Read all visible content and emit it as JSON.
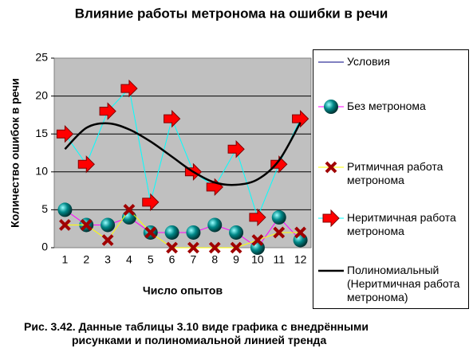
{
  "chart_data": {
    "type": "line",
    "title": "Влияние работы метронома на ошибки в речи",
    "ylabel": "Количество ошибок в речи",
    "xlabel": "Число опытов",
    "categories": [
      "1",
      "2",
      "3",
      "4",
      "5",
      "6",
      "7",
      "8",
      "9",
      "10",
      "11",
      "12"
    ],
    "ylim": [
      0,
      25
    ],
    "yticks": [
      0,
      5,
      10,
      15,
      20,
      25
    ],
    "grid": true,
    "series": [
      {
        "name": "Условия",
        "color": "#000080",
        "values": [
          null,
          null,
          null,
          null,
          null,
          null,
          null,
          null,
          null,
          null,
          null,
          null
        ]
      },
      {
        "name": "Без метронома",
        "color": "#ff00ff",
        "marker": "sphere",
        "values": [
          5,
          3,
          3,
          4,
          2,
          2,
          2,
          3,
          2,
          0,
          4,
          1
        ]
      },
      {
        "name": "Ритмичная работа метронома",
        "color": "#ffff00",
        "marker": "x",
        "values": [
          3,
          3,
          1,
          5,
          2,
          0,
          0,
          0,
          0,
          1,
          2,
          2
        ]
      },
      {
        "name": "Неритмичная работа метронома",
        "color": "#00ffff",
        "marker": "arrow",
        "values": [
          15,
          11,
          18,
          21,
          6,
          17,
          10,
          8,
          13,
          4,
          11,
          17
        ]
      },
      {
        "name": "Полиномиальный (Неритмичная работа метронома)",
        "color": "#000000",
        "trend": true,
        "values": [
          13,
          15.8,
          16.4,
          15.6,
          14,
          12,
          10,
          8.6,
          8.3,
          9,
          11.5,
          16.5
        ]
      }
    ],
    "caption": [
      "Рис. 3.42. Данные таблицы 3.10  виде графика с внедрёнными",
      "рисунками и полиномиальной линией тренда"
    ]
  }
}
